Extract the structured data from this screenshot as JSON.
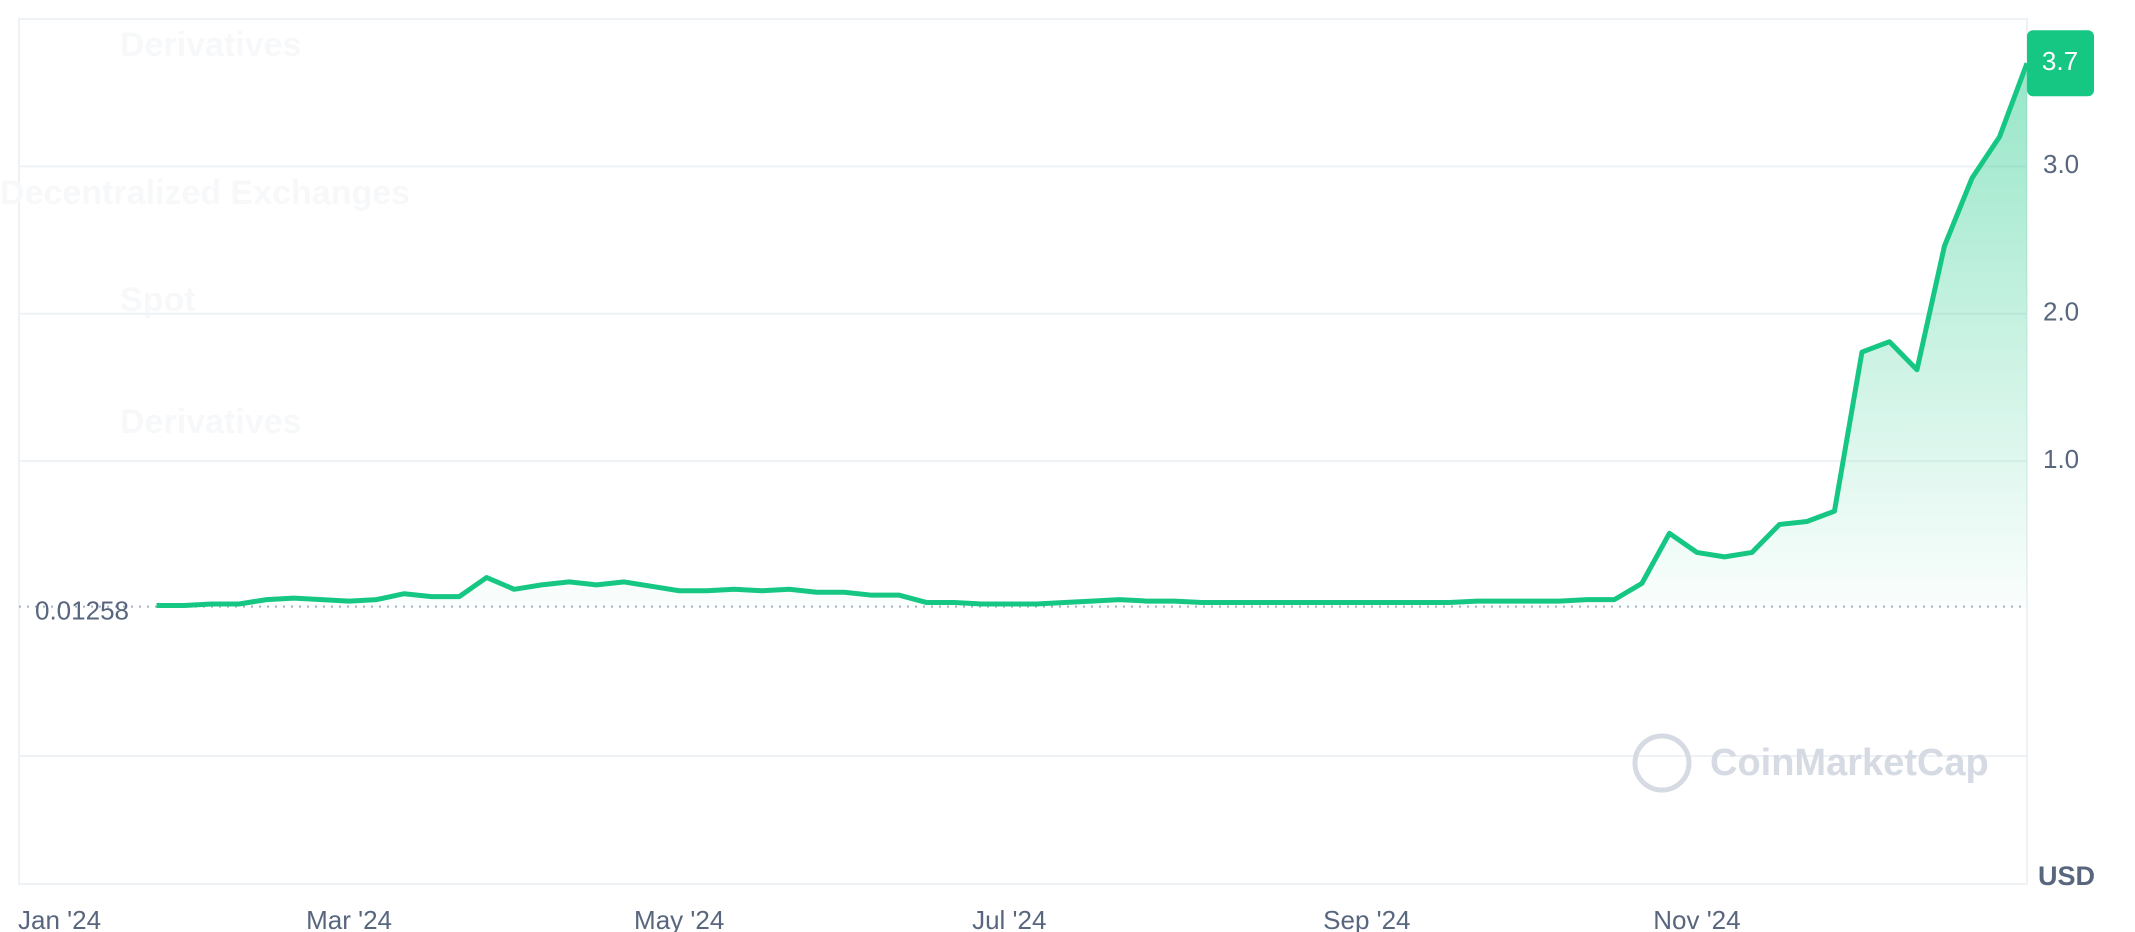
{
  "chart_data": {
    "type": "line",
    "categories": [
      "Jan '24",
      null,
      null,
      null,
      null,
      null,
      null,
      null,
      null,
      null,
      null,
      null,
      "Mar '24",
      null,
      null,
      null,
      null,
      null,
      null,
      null,
      null,
      null,
      null,
      null,
      "May '24",
      null,
      null,
      null,
      null,
      null,
      null,
      null,
      null,
      null,
      null,
      null,
      "Jul '24",
      null,
      null,
      null,
      null,
      null,
      null,
      null,
      null,
      null,
      null,
      null,
      null,
      "Sep '24",
      null,
      null,
      null,
      null,
      null,
      null,
      null,
      null,
      null,
      null,
      null,
      "Nov '24",
      null,
      null,
      null,
      null,
      null,
      null,
      null,
      null,
      null,
      null,
      null,
      null
    ],
    "series": [
      {
        "color": "#16c784",
        "values": [
          null,
          null,
          null,
          null,
          null,
          0.02,
          0.02,
          0.03,
          0.03,
          0.06,
          0.07,
          0.06,
          0.05,
          0.06,
          0.1,
          0.08,
          0.08,
          0.21,
          0.13,
          0.16,
          0.18,
          0.16,
          0.18,
          0.15,
          0.12,
          0.12,
          0.13,
          0.12,
          0.13,
          0.11,
          0.11,
          0.09,
          0.09,
          0.04,
          0.04,
          0.03,
          0.03,
          0.03,
          0.04,
          0.05,
          0.06,
          0.05,
          0.05,
          0.04,
          0.04,
          0.04,
          0.04,
          0.04,
          0.04,
          0.04,
          0.04,
          0.04,
          0.04,
          0.05,
          0.05,
          0.05,
          0.05,
          0.06,
          0.06,
          0.17,
          0.51,
          0.38,
          0.35,
          0.38,
          0.57,
          0.59,
          0.66,
          1.74,
          1.81,
          1.62,
          2.46,
          2.92,
          3.2,
          3.7
        ]
      }
    ],
    "baseline": 0.01258,
    "ylim": [
      -1.87,
      4.0
    ],
    "yticks": [
      {
        "value": 1,
        "label": "1.0"
      },
      {
        "value": 2,
        "label": "2.0"
      },
      {
        "value": 3,
        "label": "3.0"
      }
    ],
    "y_unit": "USD",
    "watermark": "CoinMarketCap",
    "grid": true
  },
  "overlay": [
    "Derivatives",
    "Decentralized Exchanges",
    "Spot",
    "Derivatives"
  ]
}
